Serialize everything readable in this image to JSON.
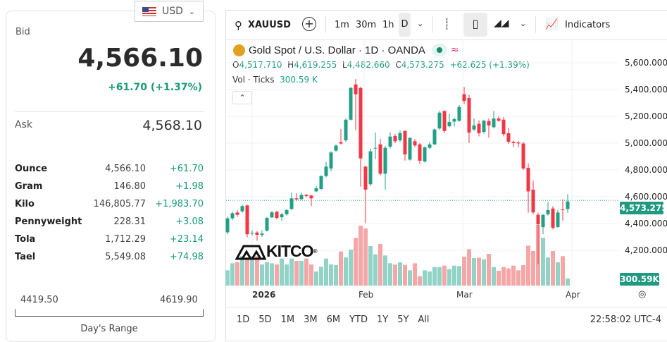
{
  "currency": {
    "label": "USD",
    "flag": "us-flag-icon"
  },
  "quote": {
    "bid_label": "Bid",
    "bid": "4,566.10",
    "change": "+61.70 (+1.37%)",
    "ask_label": "Ask",
    "ask": "4,568.10"
  },
  "units": [
    {
      "name": "Ounce",
      "value": "4,566.10",
      "change": "+61.70"
    },
    {
      "name": "Gram",
      "value": "146.80",
      "change": "+1.98"
    },
    {
      "name": "Kilo",
      "value": "146,805.77",
      "change": "+1,983.70"
    },
    {
      "name": "Pennyweight",
      "value": "228.31",
      "change": "+3.08"
    },
    {
      "name": "Tola",
      "value": "1,712.29",
      "change": "+23.14"
    },
    {
      "name": "Tael",
      "value": "5,549.08",
      "change": "+74.98"
    }
  ],
  "day_range": {
    "low": "4419.50",
    "high": "4619.90",
    "label": "Day's Range"
  },
  "toolbar": {
    "symbol": "XAUUSD",
    "intervals": [
      "1m",
      "30m",
      "1h",
      "D"
    ],
    "indicators": "Indicators"
  },
  "legend": {
    "title": "Gold Spot / U.S. Dollar · 1D · OANDA",
    "o_label": "O",
    "o": "4,517.710",
    "h_label": "H",
    "h": "4,619.255",
    "l_label": "L",
    "l": "4,482.660",
    "c_label": "C",
    "c": "4,573.275",
    "chg": "+62.625 (+1.39%)",
    "vol_label": "Vol · Ticks",
    "vol": "300.59 K"
  },
  "logo": "KITCO",
  "ranges": [
    "1D",
    "5D",
    "1M",
    "3M",
    "6M",
    "YTD",
    "1Y",
    "5Y",
    "All"
  ],
  "time": "22:58:02 UTC-4",
  "colors": {
    "up": "#22a085",
    "down": "#f23645",
    "vol_up": "#92d3c8",
    "vol_down": "#f5a6a6"
  },
  "chart_data": {
    "type": "candlestick",
    "y_ticks": [
      "5,600.000",
      "5,400.000",
      "5,200.000",
      "5,000.000",
      "4,800.000",
      "4,600.000",
      "4,400.000",
      "4,200.000"
    ],
    "x_ticks": [
      "2026",
      "Feb",
      "Mar",
      "Apr"
    ],
    "last_price": "4,573.275",
    "last_volume": "300.59K",
    "ylim": [
      4100,
      5650
    ],
    "ohlc": [
      [
        4334,
        4452,
        4320,
        4439
      ],
      [
        4439,
        4490,
        4425,
        4477
      ],
      [
        4482,
        4500,
        4450,
        4465
      ],
      [
        4491,
        4540,
        4480,
        4530
      ],
      [
        4535,
        4540,
        4298,
        4320
      ],
      [
        4330,
        4350,
        4310,
        4330
      ],
      [
        4333,
        4345,
        4272,
        4316
      ],
      [
        4315,
        4350,
        4300,
        4325
      ],
      [
        4347,
        4450,
        4340,
        4442
      ],
      [
        4446,
        4495,
        4440,
        4483
      ],
      [
        4488,
        4495,
        4430,
        4442
      ],
      [
        4447,
        4480,
        4420,
        4469
      ],
      [
        4469,
        4510,
        4460,
        4500
      ],
      [
        4509,
        4630,
        4500,
        4588
      ],
      [
        4588,
        4625,
        4570,
        4580
      ],
      [
        4582,
        4630,
        4575,
        4614
      ],
      [
        4614,
        4620,
        4595,
        4605
      ],
      [
        4609,
        4615,
        4530,
        4588
      ],
      [
        4640,
        4680,
        4635,
        4663
      ],
      [
        4658,
        4760,
        4650,
        4754
      ],
      [
        4754,
        4860,
        4745,
        4825
      ],
      [
        4811,
        4940,
        4790,
        4930
      ],
      [
        4944,
        4990,
        4935,
        4982
      ],
      [
        5007,
        5105,
        4990,
        4997
      ],
      [
        5021,
        5185,
        5010,
        5175
      ],
      [
        5175,
        5420,
        5170,
        5412
      ],
      [
        5438,
        5480,
        5097,
        5365
      ],
      [
        5412,
        5420,
        4675,
        4886
      ],
      [
        4825,
        4830,
        4404,
        4653
      ],
      [
        4693,
        4960,
        4680,
        4939
      ],
      [
        4965,
        5080,
        4880,
        4965
      ],
      [
        4991,
        5030,
        4760,
        4772
      ],
      [
        4772,
        4980,
        4653,
        4965
      ],
      [
        4974,
        5080,
        4960,
        5049
      ],
      [
        5053,
        5070,
        5000,
        5014
      ],
      [
        5021,
        5095,
        5010,
        5075
      ],
      [
        5091,
        5095,
        4870,
        4916
      ],
      [
        4877,
        5045,
        4870,
        5039
      ],
      [
        5014,
        5030,
        4970,
        4983
      ],
      [
        4991,
        5000,
        4845,
        4869
      ],
      [
        4863,
        4975,
        4855,
        4969
      ],
      [
        4965,
        5010,
        4955,
        4991
      ],
      [
        4991,
        5110,
        4985,
        5102
      ],
      [
        5109,
        5240,
        5100,
        5228
      ],
      [
        5240,
        5245,
        5075,
        5091
      ],
      [
        5126,
        5220,
        5120,
        5158
      ],
      [
        5161,
        5190,
        5125,
        5179
      ],
      [
        5167,
        5285,
        5160,
        5270
      ],
      [
        5365,
        5420,
        5290,
        5316
      ],
      [
        5337,
        5360,
        5000,
        5079
      ],
      [
        5102,
        5185,
        5090,
        5132
      ],
      [
        5144,
        5170,
        5050,
        5074
      ],
      [
        5084,
        5175,
        5070,
        5167
      ],
      [
        5165,
        5185,
        5040,
        5132
      ],
      [
        5119,
        5240,
        5110,
        5184
      ],
      [
        5184,
        5200,
        5160,
        5167
      ],
      [
        5175,
        5195,
        5050,
        5067
      ],
      [
        5074,
        5115,
        4995,
        5010
      ],
      [
        5009,
        5020,
        4970,
        5000
      ],
      [
        5005,
        5015,
        4970,
        4998
      ],
      [
        4997,
        5010,
        4800,
        4811
      ],
      [
        4816,
        4850,
        4480,
        4640
      ],
      [
        4653,
        4720,
        4470,
        4483
      ],
      [
        4465,
        4480,
        4097,
        4395
      ],
      [
        4373,
        4470,
        4320,
        4465
      ],
      [
        4469,
        4560,
        4460,
        4500
      ],
      [
        4512,
        4530,
        4355,
        4368
      ],
      [
        4374,
        4500,
        4370,
        4482
      ],
      [
        4505,
        4580,
        4420,
        4500
      ],
      [
        4509,
        4620,
        4480,
        4565
      ]
    ],
    "volume_k": [
      650,
      950,
      1000,
      1250,
      1200,
      1250,
      1250,
      900,
      1000,
      950,
      900,
      1150,
      900,
      1150,
      1050,
      1050,
      1150,
      900,
      600,
      800,
      1150,
      900,
      870,
      1450,
      1200,
      1530,
      2030,
      2550,
      2430,
      1680,
      1330,
      1770,
      1280,
      950,
      890,
      990,
      880,
      650,
      950,
      400,
      650,
      600,
      790,
      790,
      850,
      700,
      850,
      830,
      1230,
      1550,
      1170,
      1190,
      1120,
      1350,
      790,
      630,
      790,
      730,
      850,
      650,
      870,
      1700,
      1470,
      2590,
      2030,
      1200,
      1470,
      990,
      1250,
      300
    ]
  }
}
